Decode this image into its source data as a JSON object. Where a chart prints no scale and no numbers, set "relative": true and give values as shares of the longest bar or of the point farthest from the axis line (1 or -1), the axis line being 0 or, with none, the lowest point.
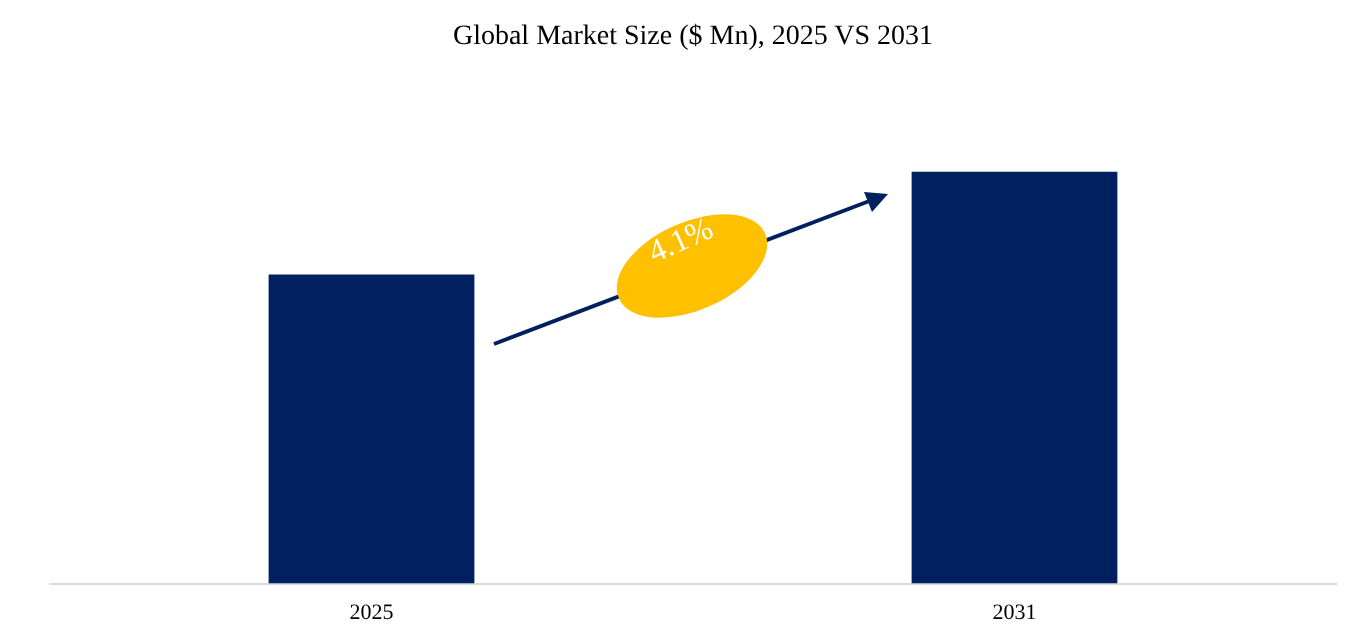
{
  "chart_data": {
    "type": "bar",
    "title": "Global Market Size ($ Mn), 2025 VS 2031",
    "categories": [
      "2025",
      "2031"
    ],
    "values": [
      0.75,
      1
    ],
    "color": "#002060",
    "relative": true,
    "grid": false,
    "legend": false,
    "annotations": [
      "4.1%"
    ]
  }
}
